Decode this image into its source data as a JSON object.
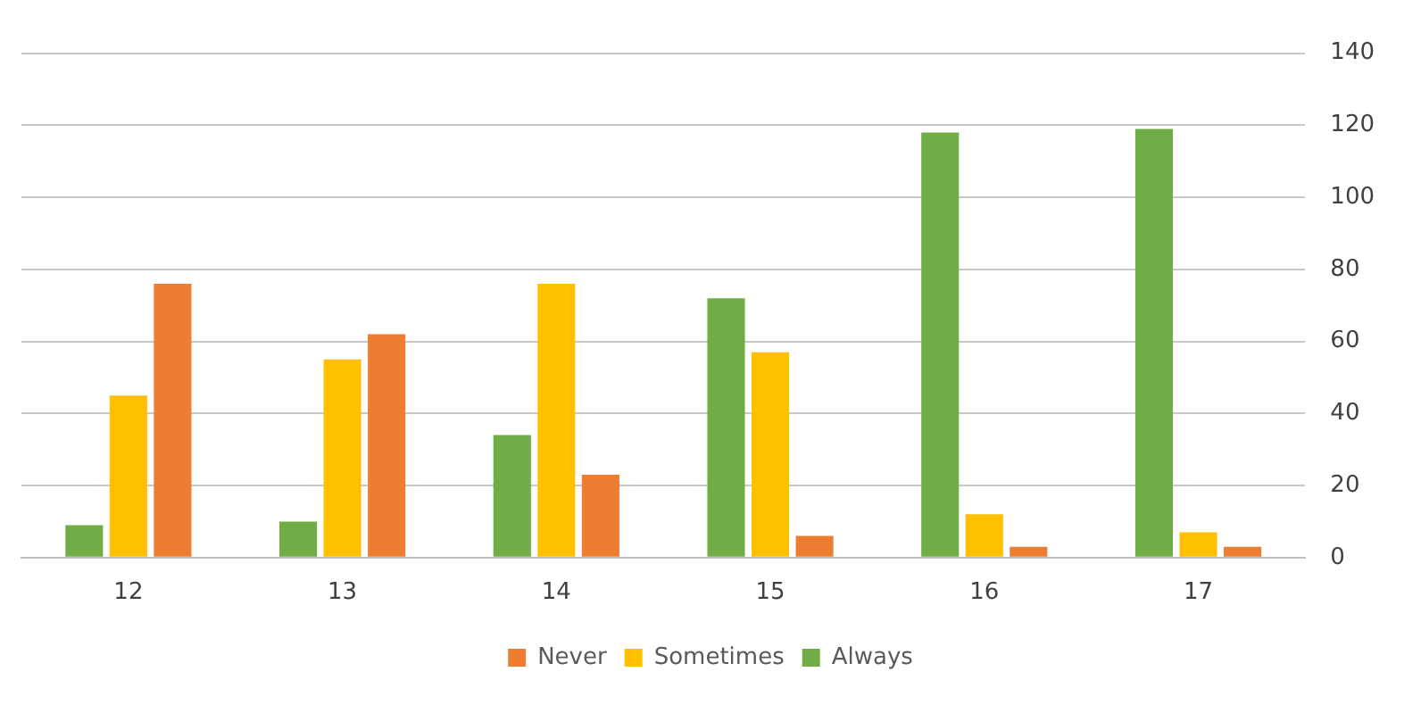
{
  "chart_data": {
    "type": "bar",
    "categories": [
      "12",
      "13",
      "14",
      "15",
      "16",
      "17"
    ],
    "series": [
      {
        "name": "Always",
        "color": "#70ad47",
        "values": [
          9,
          10,
          34,
          72,
          118,
          119
        ]
      },
      {
        "name": "Sometimes",
        "color": "#ffc000",
        "values": [
          45,
          55,
          76,
          57,
          12,
          7
        ]
      },
      {
        "name": "Never",
        "color": "#ed7d31",
        "values": [
          76,
          62,
          23,
          6,
          3,
          3
        ]
      }
    ],
    "ylim": [
      0,
      140
    ],
    "yticks": [
      0,
      20,
      40,
      60,
      80,
      100,
      120,
      140
    ],
    "grid": "y",
    "legend": "bottom"
  }
}
